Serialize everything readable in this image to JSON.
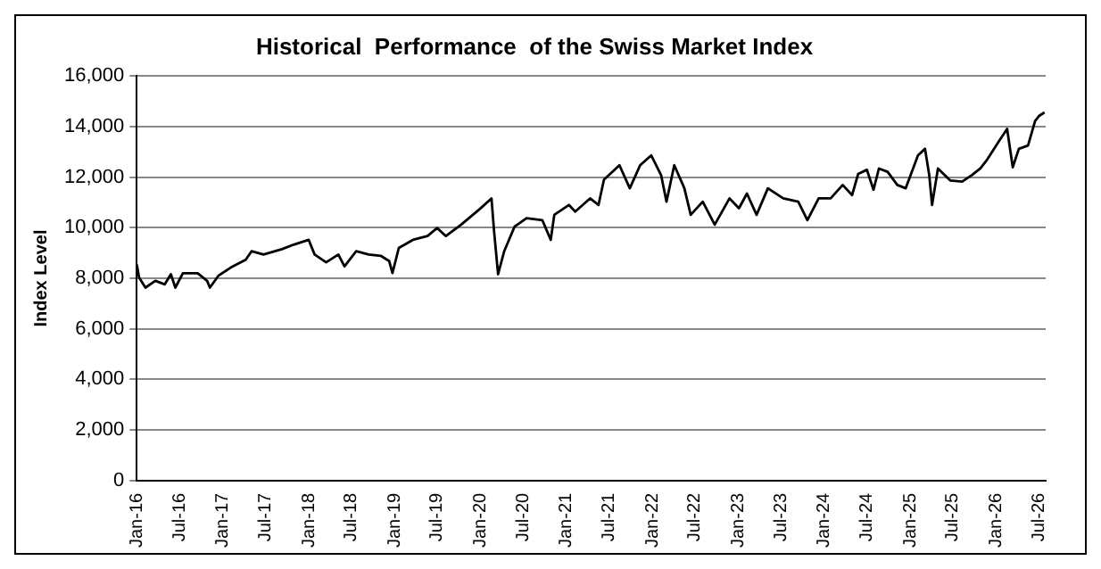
{
  "chart_data": {
    "type": "line",
    "title": "Historical  Performance  of the Swiss Market Index",
    "ylabel": "Index Level",
    "x": [
      "2016-01-01",
      "2016-01-11",
      "2016-02-07",
      "2016-03-20",
      "2016-04-29",
      "2016-05-25",
      "2016-06-13",
      "2016-07-15",
      "2016-09-16",
      "2016-10-26",
      "2016-11-07",
      "2016-12-13",
      "2017-02-03",
      "2017-04-08",
      "2017-05-03",
      "2017-06-23",
      "2017-09-09",
      "2017-10-29",
      "2018-01-01",
      "2018-01-26",
      "2018-03-16",
      "2018-05-07",
      "2018-06-02",
      "2018-07-22",
      "2018-09-13",
      "2018-11-03",
      "2018-12-09",
      "2018-12-23",
      "2019-01-19",
      "2019-03-20",
      "2019-05-21",
      "2019-07-01",
      "2019-08-07",
      "2019-10-11",
      "2019-12-27",
      "2020-02-17",
      "2020-02-28",
      "2020-03-16",
      "2020-04-11",
      "2020-05-25",
      "2020-07-15",
      "2020-09-20",
      "2020-10-26",
      "2020-11-10",
      "2021-01-11",
      "2021-02-07",
      "2021-04-11",
      "2021-05-17",
      "2021-06-09",
      "2021-08-14",
      "2021-09-27",
      "2021-11-10",
      "2021-12-27",
      "2022-02-07",
      "2022-03-02",
      "2022-04-04",
      "2022-05-17",
      "2022-06-13",
      "2022-08-03",
      "2022-09-23",
      "2022-11-25",
      "2023-01-04",
      "2023-02-07",
      "2023-03-20",
      "2023-05-07",
      "2023-07-11",
      "2023-09-13",
      "2023-10-22",
      "2023-12-09",
      "2024-01-29",
      "2024-03-20",
      "2024-04-29",
      "2024-05-25",
      "2024-07-01",
      "2024-07-29",
      "2024-08-21",
      "2024-09-27",
      "2024-11-07",
      "2024-12-13",
      "2025-02-03",
      "2025-03-05",
      "2025-03-23",
      "2025-04-04",
      "2025-04-29",
      "2025-06-20",
      "2025-08-10",
      "2025-09-20",
      "2025-10-26",
      "2025-11-21",
      "2026-01-11",
      "2026-02-17",
      "2026-03-13",
      "2026-04-08",
      "2026-05-17",
      "2026-06-16",
      "2026-07-04",
      "2026-07-26"
    ],
    "series": [
      {
        "color": "#000000",
        "values": [
          8550,
          8030,
          7630,
          7900,
          7760,
          8160,
          7630,
          8200,
          8200,
          7900,
          7630,
          8100,
          8420,
          8730,
          9070,
          8940,
          9150,
          9330,
          9520,
          8940,
          8630,
          8940,
          8470,
          9070,
          8940,
          8890,
          8680,
          8210,
          9200,
          9520,
          9670,
          9990,
          9670,
          10120,
          10720,
          11160,
          9860,
          8160,
          9070,
          10040,
          10380,
          10300,
          9520,
          10510,
          10900,
          10640,
          11160,
          10900,
          11900,
          12470,
          11560,
          12470,
          12860,
          12080,
          11030,
          12470,
          11560,
          10510,
          11030,
          10120,
          11160,
          10770,
          11350,
          10510,
          11560,
          11160,
          11030,
          10300,
          11160,
          11160,
          11690,
          11290,
          12130,
          12290,
          11500,
          12340,
          12210,
          11690,
          11560,
          12860,
          13120,
          12080,
          10900,
          12340,
          11870,
          11820,
          12080,
          12340,
          12650,
          13390,
          13910,
          12390,
          13120,
          13250,
          14220,
          14430,
          14560
        ]
      }
    ],
    "xlim": [
      "2016-01-01",
      "2026-07-31"
    ],
    "xticks": [
      {
        "value": "2016-01-01",
        "label": "Jan-16"
      },
      {
        "value": "2016-07-01",
        "label": "Jul-16"
      },
      {
        "value": "2017-01-01",
        "label": "Jan-17"
      },
      {
        "value": "2017-07-01",
        "label": "Jul-17"
      },
      {
        "value": "2018-01-01",
        "label": "Jan-18"
      },
      {
        "value": "2018-07-01",
        "label": "Jul-18"
      },
      {
        "value": "2019-01-01",
        "label": "Jan-19"
      },
      {
        "value": "2019-07-01",
        "label": "Jul-19"
      },
      {
        "value": "2020-01-01",
        "label": "Jan-20"
      },
      {
        "value": "2020-07-01",
        "label": "Jul-20"
      },
      {
        "value": "2021-01-01",
        "label": "Jan-21"
      },
      {
        "value": "2021-07-01",
        "label": "Jul-21"
      },
      {
        "value": "2022-01-01",
        "label": "Jan-22"
      },
      {
        "value": "2022-07-01",
        "label": "Jul-22"
      },
      {
        "value": "2023-01-01",
        "label": "Jan-23"
      },
      {
        "value": "2023-07-01",
        "label": "Jul-23"
      },
      {
        "value": "2024-01-01",
        "label": "Jan-24"
      },
      {
        "value": "2024-07-01",
        "label": "Jul-24"
      },
      {
        "value": "2025-01-01",
        "label": "Jan-25"
      },
      {
        "value": "2025-07-01",
        "label": "Jul-25"
      },
      {
        "value": "2026-01-01",
        "label": "Jan-26"
      },
      {
        "value": "2026-07-01",
        "label": "Jul-26"
      }
    ],
    "ylim": [
      0,
      16000
    ],
    "yticks": [
      0,
      {
        "value": 2000,
        "label": "2,000"
      },
      {
        "value": 4000,
        "label": "4,000"
      },
      {
        "value": 6000,
        "label": "6,000"
      },
      {
        "value": 8000,
        "label": "8,000"
      },
      {
        "value": 10000,
        "label": "10,000"
      },
      {
        "value": 12000,
        "label": "12,000"
      },
      {
        "value": 14000,
        "label": "14,000"
      },
      {
        "value": 16000,
        "label": "16,000"
      }
    ],
    "grid": "y",
    "legend": false,
    "marker": "none",
    "line_style": "solid"
  }
}
